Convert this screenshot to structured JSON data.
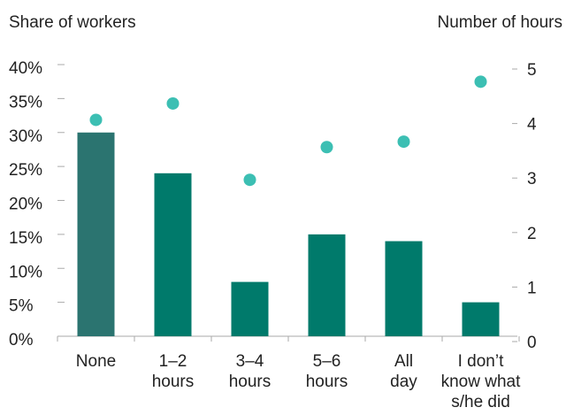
{
  "chart_data": {
    "type": "bar_dot",
    "y_label": "Share of workers",
    "y2_label": "Number of hours",
    "categories": [
      [
        "None"
      ],
      [
        "1–2",
        "hours"
      ],
      [
        "3–4",
        "hours"
      ],
      [
        "5–6",
        "hours"
      ],
      [
        "All",
        "day"
      ],
      [
        "I don’t",
        "know what",
        "s/he did"
      ]
    ],
    "series": [
      {
        "type": "bar",
        "colors": [
          "#2b7470",
          "#007a6b",
          "#007a6b",
          "#007a6b",
          "#007a6b",
          "#007a6b"
        ],
        "values": [
          30,
          24,
          8,
          15,
          14,
          5
        ]
      },
      {
        "type": "dot",
        "axis": "y2",
        "color": "#3cbfb3",
        "values": [
          4.1,
          4.4,
          3.0,
          3.6,
          3.7,
          4.8
        ]
      }
    ],
    "ylim": [
      0,
      40
    ],
    "yticks": [
      {
        "value": 0,
        "label": "0%"
      },
      {
        "value": 5,
        "label": "5%"
      },
      {
        "value": 10,
        "label": "10%"
      },
      {
        "value": 15,
        "label": "15%"
      },
      {
        "value": 20,
        "label": "20%"
      },
      {
        "value": 25,
        "label": "25%"
      },
      {
        "value": 30,
        "label": "30%"
      },
      {
        "value": 35,
        "label": "35%"
      },
      {
        "value": 40,
        "label": "40%"
      }
    ],
    "y2lim": [
      0,
      5
    ],
    "y2ticks": [
      0,
      1,
      2,
      3,
      4,
      5
    ],
    "grid": false
  }
}
